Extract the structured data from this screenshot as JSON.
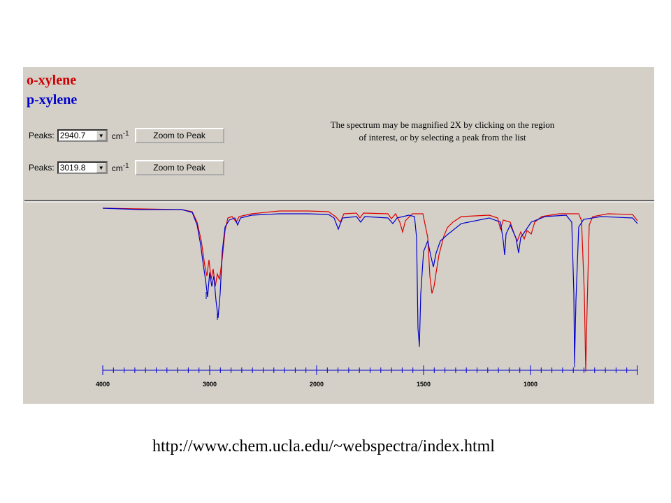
{
  "legend": {
    "items": [
      {
        "name": "o-xylene",
        "color": "#cc0000"
      },
      {
        "name": "p-xylene",
        "color": "#0000cc"
      }
    ]
  },
  "controls": [
    {
      "label": "Peaks:",
      "selected": "2940.7",
      "unit": "cm",
      "unit_sup": "-1",
      "button": "Zoom to Peak"
    },
    {
      "label": "Peaks:",
      "selected": "3019.8",
      "unit": "cm",
      "unit_sup": "-1",
      "button": "Zoom to Peak"
    }
  ],
  "note": [
    "The spectrum may be magnified 2X by clicking on the region",
    "of interest, or by selecting a peak from the list"
  ],
  "axis": {
    "xlim": [
      4000,
      500
    ],
    "xticks": [
      4000,
      3000,
      2000,
      1500,
      1000
    ]
  },
  "footer": {
    "url": "http://www.chem.ucla.edu/~webspectra/index.html"
  }
}
